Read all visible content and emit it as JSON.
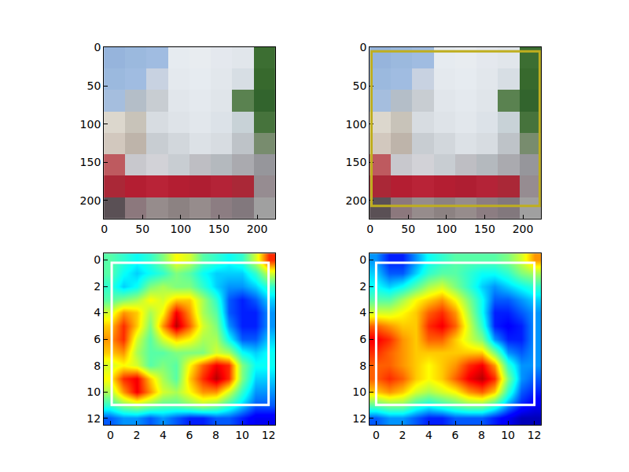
{
  "chart_data": [
    {
      "type": "image",
      "xlim": [
        -0.5,
        223.5
      ],
      "ylim": [
        223.5,
        -0.5
      ],
      "xticks": [
        0,
        50,
        100,
        150,
        200
      ],
      "yticks": [
        0,
        50,
        100,
        150,
        200
      ],
      "pixel_size": 28,
      "pixels": [
        [
          [
            150,
            180,
            220
          ],
          [
            155,
            185,
            222
          ],
          [
            160,
            188,
            225
          ],
          [
            230,
            235,
            240
          ],
          [
            232,
            236,
            240
          ],
          [
            228,
            232,
            238
          ],
          [
            225,
            230,
            235
          ],
          [
            60,
            110,
            50
          ]
        ],
        [
          [
            155,
            185,
            222
          ],
          [
            160,
            188,
            225
          ],
          [
            200,
            210,
            225
          ],
          [
            228,
            233,
            238
          ],
          [
            230,
            235,
            240
          ],
          [
            226,
            231,
            236
          ],
          [
            215,
            222,
            228
          ],
          [
            55,
            105,
            45
          ]
        ],
        [
          [
            165,
            190,
            222
          ],
          [
            180,
            190,
            200
          ],
          [
            200,
            205,
            210
          ],
          [
            225,
            230,
            235
          ],
          [
            228,
            233,
            238
          ],
          [
            224,
            229,
            234
          ],
          [
            90,
            130,
            80
          ],
          [
            50,
            100,
            45
          ]
        ],
        [
          [
            220,
            215,
            205
          ],
          [
            200,
            195,
            185
          ],
          [
            215,
            220,
            225
          ],
          [
            222,
            227,
            232
          ],
          [
            226,
            231,
            236
          ],
          [
            220,
            226,
            232
          ],
          [
            200,
            210,
            215
          ],
          [
            70,
            115,
            60
          ]
        ],
        [
          [
            210,
            200,
            190
          ],
          [
            190,
            180,
            170
          ],
          [
            200,
            205,
            210
          ],
          [
            210,
            215,
            220
          ],
          [
            220,
            225,
            230
          ],
          [
            215,
            220,
            225
          ],
          [
            190,
            195,
            200
          ],
          [
            120,
            140,
            110
          ]
        ],
        [
          [
            190,
            90,
            95
          ],
          [
            200,
            200,
            205
          ],
          [
            210,
            210,
            215
          ],
          [
            200,
            205,
            210
          ],
          [
            190,
            190,
            195
          ],
          [
            180,
            185,
            190
          ],
          [
            170,
            170,
            175
          ],
          [
            150,
            150,
            155
          ]
        ],
        [
          [
            170,
            40,
            55
          ],
          [
            180,
            30,
            50
          ],
          [
            185,
            35,
            55
          ],
          [
            180,
            30,
            50
          ],
          [
            175,
            30,
            50
          ],
          [
            180,
            35,
            55
          ],
          [
            170,
            40,
            55
          ],
          [
            150,
            140,
            145
          ]
        ],
        [
          [
            90,
            80,
            85
          ],
          [
            140,
            120,
            125
          ],
          [
            150,
            140,
            140
          ],
          [
            140,
            130,
            130
          ],
          [
            150,
            140,
            140
          ],
          [
            140,
            125,
            130
          ],
          [
            130,
            120,
            125
          ],
          [
            160,
            160,
            160
          ]
        ]
      ]
    },
    {
      "type": "image",
      "xlim": [
        -0.5,
        223.5
      ],
      "ylim": [
        223.5,
        -0.5
      ],
      "xticks": [
        0,
        50,
        100,
        150,
        200
      ],
      "yticks": [
        0,
        50,
        100,
        150,
        200
      ],
      "pixel_size": 28,
      "pixels": [
        [
          [
            150,
            180,
            220
          ],
          [
            155,
            185,
            222
          ],
          [
            160,
            188,
            225
          ],
          [
            230,
            235,
            240
          ],
          [
            232,
            236,
            240
          ],
          [
            228,
            232,
            238
          ],
          [
            225,
            230,
            235
          ],
          [
            60,
            110,
            50
          ]
        ],
        [
          [
            155,
            185,
            222
          ],
          [
            160,
            188,
            225
          ],
          [
            200,
            210,
            225
          ],
          [
            228,
            233,
            238
          ],
          [
            230,
            235,
            240
          ],
          [
            226,
            231,
            236
          ],
          [
            215,
            222,
            228
          ],
          [
            55,
            105,
            45
          ]
        ],
        [
          [
            165,
            190,
            222
          ],
          [
            180,
            190,
            200
          ],
          [
            200,
            205,
            210
          ],
          [
            225,
            230,
            235
          ],
          [
            228,
            233,
            238
          ],
          [
            224,
            229,
            234
          ],
          [
            90,
            130,
            80
          ],
          [
            50,
            100,
            45
          ]
        ],
        [
          [
            220,
            215,
            205
          ],
          [
            200,
            195,
            185
          ],
          [
            215,
            220,
            225
          ],
          [
            222,
            227,
            232
          ],
          [
            226,
            231,
            236
          ],
          [
            220,
            226,
            232
          ],
          [
            200,
            210,
            215
          ],
          [
            70,
            115,
            60
          ]
        ],
        [
          [
            210,
            200,
            190
          ],
          [
            190,
            180,
            170
          ],
          [
            200,
            205,
            210
          ],
          [
            210,
            215,
            220
          ],
          [
            220,
            225,
            230
          ],
          [
            215,
            220,
            225
          ],
          [
            190,
            195,
            200
          ],
          [
            120,
            140,
            110
          ]
        ],
        [
          [
            190,
            90,
            95
          ],
          [
            200,
            200,
            205
          ],
          [
            210,
            210,
            215
          ],
          [
            200,
            205,
            210
          ],
          [
            190,
            190,
            195
          ],
          [
            180,
            185,
            190
          ],
          [
            170,
            170,
            175
          ],
          [
            150,
            150,
            155
          ]
        ],
        [
          [
            170,
            40,
            55
          ],
          [
            180,
            30,
            50
          ],
          [
            185,
            35,
            55
          ],
          [
            180,
            30,
            50
          ],
          [
            175,
            30,
            50
          ],
          [
            180,
            35,
            55
          ],
          [
            170,
            40,
            55
          ],
          [
            150,
            140,
            145
          ]
        ],
        [
          [
            90,
            80,
            85
          ],
          [
            140,
            120,
            125
          ],
          [
            150,
            140,
            140
          ],
          [
            140,
            130,
            130
          ],
          [
            150,
            140,
            140
          ],
          [
            140,
            125,
            130
          ],
          [
            130,
            120,
            125
          ],
          [
            160,
            160,
            160
          ]
        ]
      ],
      "box": {
        "x0": 2,
        "y0": 5,
        "x1": 222,
        "y1": 207,
        "color": "#bfae1f"
      }
    },
    {
      "type": "heatmap",
      "xlim": [
        -0.5,
        12.5
      ],
      "ylim": [
        12.5,
        -0.5
      ],
      "xticks": [
        0,
        2,
        4,
        6,
        8,
        10,
        12
      ],
      "yticks": [
        0,
        2,
        4,
        6,
        8,
        10,
        12
      ],
      "zlim": [
        0,
        1
      ],
      "cells": [
        [
          0.45,
          0.4,
          0.35,
          0.4,
          0.5,
          0.65,
          0.6,
          0.45,
          0.4,
          0.35,
          0.4,
          0.6,
          0.85
        ],
        [
          0.45,
          0.35,
          0.3,
          0.35,
          0.4,
          0.5,
          0.45,
          0.35,
          0.3,
          0.3,
          0.3,
          0.4,
          0.6
        ],
        [
          0.4,
          0.3,
          0.35,
          0.5,
          0.55,
          0.5,
          0.5,
          0.4,
          0.3,
          0.25,
          0.25,
          0.3,
          0.4
        ],
        [
          0.45,
          0.5,
          0.55,
          0.65,
          0.6,
          0.7,
          0.7,
          0.55,
          0.4,
          0.2,
          0.15,
          0.2,
          0.3
        ],
        [
          0.6,
          0.75,
          0.7,
          0.55,
          0.65,
          0.9,
          0.75,
          0.55,
          0.45,
          0.2,
          0.15,
          0.15,
          0.25
        ],
        [
          0.7,
          0.85,
          0.7,
          0.5,
          0.75,
          0.95,
          0.8,
          0.6,
          0.5,
          0.25,
          0.15,
          0.15,
          0.25
        ],
        [
          0.75,
          0.85,
          0.6,
          0.45,
          0.6,
          0.7,
          0.65,
          0.55,
          0.55,
          0.35,
          0.2,
          0.2,
          0.3
        ],
        [
          0.7,
          0.75,
          0.55,
          0.45,
          0.45,
          0.5,
          0.5,
          0.5,
          0.6,
          0.55,
          0.35,
          0.3,
          0.35
        ],
        [
          0.6,
          0.65,
          0.6,
          0.45,
          0.5,
          0.45,
          0.65,
          0.8,
          0.9,
          0.85,
          0.5,
          0.35,
          0.35
        ],
        [
          0.65,
          0.85,
          0.9,
          0.7,
          0.55,
          0.45,
          0.7,
          0.85,
          0.95,
          0.85,
          0.5,
          0.3,
          0.3
        ],
        [
          0.55,
          0.75,
          0.9,
          0.75,
          0.6,
          0.55,
          0.65,
          0.75,
          0.75,
          0.6,
          0.4,
          0.25,
          0.25
        ],
        [
          0.4,
          0.5,
          0.55,
          0.5,
          0.45,
          0.45,
          0.5,
          0.55,
          0.5,
          0.4,
          0.3,
          0.2,
          0.2
        ],
        [
          0.2,
          0.25,
          0.25,
          0.2,
          0.25,
          0.2,
          0.15,
          0.15,
          0.2,
          0.2,
          0.15,
          0.1,
          0.1
        ]
      ],
      "box": {
        "x0": 0.1,
        "y0": 0.2,
        "x1": 12,
        "y1": 11,
        "color": "#ffffff"
      }
    },
    {
      "type": "heatmap",
      "xlim": [
        -0.5,
        12.5
      ],
      "ylim": [
        12.5,
        -0.5
      ],
      "xticks": [
        0,
        2,
        4,
        6,
        8,
        10,
        12
      ],
      "yticks": [
        0,
        2,
        4,
        6,
        8,
        10,
        12
      ],
      "zlim": [
        0,
        1
      ],
      "cells": [
        [
          0.25,
          0.15,
          0.15,
          0.25,
          0.35,
          0.4,
          0.45,
          0.45,
          0.45,
          0.45,
          0.5,
          0.6,
          0.75
        ],
        [
          0.3,
          0.2,
          0.2,
          0.3,
          0.4,
          0.45,
          0.45,
          0.4,
          0.35,
          0.35,
          0.4,
          0.5,
          0.55
        ],
        [
          0.35,
          0.3,
          0.35,
          0.45,
          0.55,
          0.6,
          0.5,
          0.4,
          0.3,
          0.25,
          0.3,
          0.35,
          0.4
        ],
        [
          0.45,
          0.45,
          0.55,
          0.65,
          0.7,
          0.75,
          0.65,
          0.5,
          0.35,
          0.2,
          0.2,
          0.25,
          0.3
        ],
        [
          0.6,
          0.6,
          0.65,
          0.7,
          0.8,
          0.85,
          0.75,
          0.55,
          0.35,
          0.15,
          0.15,
          0.2,
          0.25
        ],
        [
          0.8,
          0.75,
          0.7,
          0.7,
          0.85,
          0.9,
          0.8,
          0.6,
          0.4,
          0.15,
          0.12,
          0.15,
          0.25
        ],
        [
          0.9,
          0.85,
          0.75,
          0.7,
          0.8,
          0.8,
          0.7,
          0.6,
          0.5,
          0.25,
          0.15,
          0.15,
          0.25
        ],
        [
          0.85,
          0.8,
          0.75,
          0.7,
          0.7,
          0.7,
          0.7,
          0.7,
          0.7,
          0.5,
          0.25,
          0.2,
          0.25
        ],
        [
          0.8,
          0.8,
          0.75,
          0.7,
          0.65,
          0.7,
          0.75,
          0.85,
          0.9,
          0.75,
          0.4,
          0.25,
          0.25
        ],
        [
          0.8,
          0.85,
          0.8,
          0.7,
          0.65,
          0.7,
          0.8,
          0.9,
          0.95,
          0.85,
          0.5,
          0.25,
          0.2
        ],
        [
          0.7,
          0.75,
          0.7,
          0.6,
          0.55,
          0.6,
          0.65,
          0.75,
          0.8,
          0.7,
          0.4,
          0.2,
          0.15
        ],
        [
          0.45,
          0.5,
          0.5,
          0.4,
          0.35,
          0.4,
          0.45,
          0.5,
          0.5,
          0.4,
          0.25,
          0.15,
          0.1
        ],
        [
          0.2,
          0.25,
          0.25,
          0.2,
          0.15,
          0.15,
          0.2,
          0.2,
          0.2,
          0.15,
          0.1,
          0.05,
          0.05
        ]
      ],
      "box": {
        "x0": 0,
        "y0": 0.2,
        "x1": 12,
        "y1": 11,
        "color": "#ffffff"
      }
    }
  ]
}
